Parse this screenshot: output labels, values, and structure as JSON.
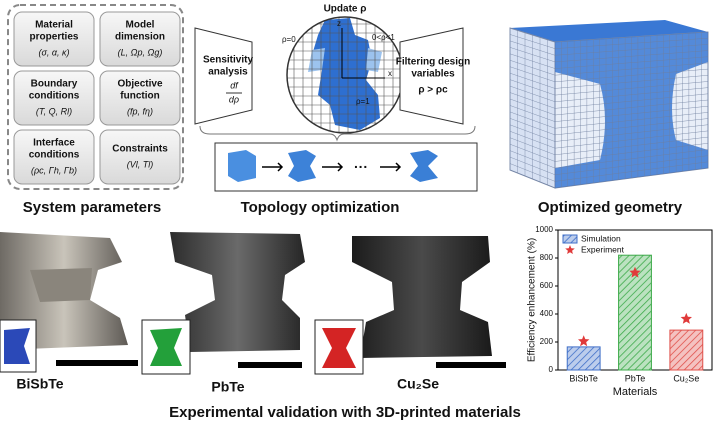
{
  "panels": {
    "system_parameters": {
      "title": "System parameters",
      "boxes": [
        {
          "label": [
            "Material",
            "properties"
          ],
          "symbols": "(σ, α, κ)"
        },
        {
          "label": [
            "Model",
            "dimension"
          ],
          "symbols": "(L, Ωp, Ωg)"
        },
        {
          "label": [
            "Boundary",
            "conditions"
          ],
          "symbols": "(T, Q, Rl)"
        },
        {
          "label": [
            "Objective",
            "function"
          ],
          "symbols": "(fp, fη)"
        },
        {
          "label": [
            "Interface",
            "conditions"
          ],
          "symbols": "(ρc, Γh, Γb)"
        },
        {
          "label": [
            "Constraints"
          ],
          "symbols": "(Vl, Tl)"
        }
      ]
    },
    "topology": {
      "title": "Topology optimization",
      "update": "Update ρ",
      "sensitivity": [
        "Sensitivity",
        "analysis"
      ],
      "derivative_top": "df",
      "derivative_bottom": "dρ",
      "filtering": [
        "Filtering design",
        "variables"
      ],
      "threshold": "ρ > ρc",
      "rho_zero": "ρ=0",
      "rho_mid": "0<ρ<1",
      "rho_one": "ρ=1",
      "axis_z": "z",
      "axis_x": "x",
      "ellipsis": "···"
    },
    "geometry": {
      "title": "Optimized geometry"
    },
    "validation": {
      "title": "Experimental validation with 3D-printed materials",
      "samples": [
        "BiSbTe",
        "PbTe",
        "Cu₂Se"
      ]
    }
  },
  "chart_data": {
    "type": "bar",
    "x_label": "Materials",
    "y_label": "Efficiency enhancement (%)",
    "categories": [
      "BiSbTe",
      "PbTe",
      "Cu₂Se"
    ],
    "series": [
      {
        "name": "Simulation",
        "color": "#3f6fc8",
        "colors": [
          "#3f6fc8",
          "#3daa4a",
          "#e0504a"
        ],
        "values": [
          165,
          820,
          285
        ]
      },
      {
        "name": "Experiment",
        "color": "#e03a3a",
        "marker": "star",
        "values": [
          205,
          695,
          365
        ]
      }
    ],
    "ylim": [
      0,
      1000
    ],
    "yticks": [
      0,
      200,
      400,
      600,
      800,
      1000
    ],
    "legend": "upper-left"
  }
}
